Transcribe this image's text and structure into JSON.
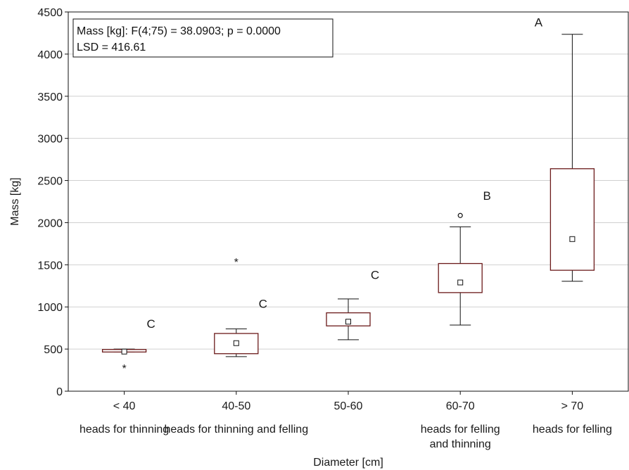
{
  "chart_data": {
    "type": "box",
    "xlabel": "Diameter [cm]",
    "ylabel": "Mass [kg]",
    "ylim": [
      0,
      4500
    ],
    "yticks": [
      0,
      500,
      1000,
      1500,
      2000,
      2500,
      3000,
      3500,
      4000,
      4500
    ],
    "grid": "horizontal",
    "annotation_lines": [
      "Mass [kg]: F(4;75) = 38.0903; p = 0.0000",
      "LSD = 416.61"
    ],
    "categories": [
      {
        "label": "< 40",
        "sublabel": [
          "heads for thinning"
        ],
        "letter": "C",
        "whisker_low": 465,
        "q1": 465,
        "median": 470,
        "q3": 495,
        "whisker_high": 500,
        "outliers": [],
        "extremes": [
          300
        ]
      },
      {
        "label": "40-50",
        "sublabel": [
          "heads for thinning and felling"
        ],
        "letter": "C",
        "whisker_low": 410,
        "q1": 445,
        "median": 570,
        "q3": 685,
        "whisker_high": 740,
        "outliers": [],
        "extremes": [
          1560
        ]
      },
      {
        "label": "50-60",
        "sublabel": [],
        "letter": "C",
        "whisker_low": 610,
        "q1": 775,
        "median": 825,
        "q3": 930,
        "whisker_high": 1095,
        "outliers": [],
        "extremes": []
      },
      {
        "label": "60-70",
        "sublabel": [
          "heads for felling",
          "and thinning"
        ],
        "letter": "B",
        "whisker_low": 785,
        "q1": 1170,
        "median": 1290,
        "q3": 1515,
        "whisker_high": 1950,
        "outliers": [
          2085
        ],
        "extremes": []
      },
      {
        "label": "> 70",
        "sublabel": [
          "heads for felling"
        ],
        "letter": "A",
        "whisker_low": 1305,
        "q1": 1435,
        "median": 1805,
        "q3": 2640,
        "whisker_high": 4235,
        "outliers": [],
        "extremes": []
      }
    ],
    "colors": {
      "box": "#6b1a1a",
      "whisker": "#111111",
      "grid": "#d0d0d0",
      "axis": "#111111"
    }
  }
}
